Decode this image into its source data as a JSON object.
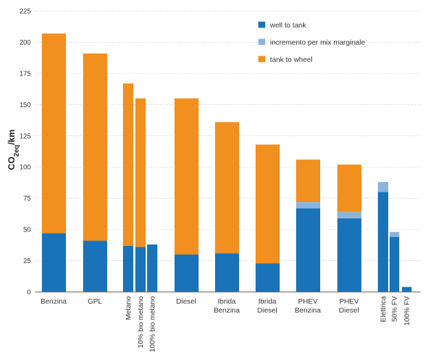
{
  "chart_data": {
    "type": "bar",
    "stacked": true,
    "ylabel": {
      "base": "CO",
      "subscript": "2eq",
      "suffix": "/km"
    },
    "ylim": [
      0,
      225
    ],
    "yticks": [
      0,
      25,
      50,
      75,
      100,
      125,
      150,
      175,
      200,
      225
    ],
    "grid": true,
    "legend_position": "top-right",
    "series": [
      {
        "name": "well to tank",
        "color": "#1a73b8"
      },
      {
        "name": "incremento per mix marginale",
        "color": "#8cb4dc"
      },
      {
        "name": "tank to wheel",
        "color": "#f18f1f"
      }
    ],
    "bars": [
      {
        "label": "Benzina",
        "values": [
          47,
          0,
          160
        ],
        "label_orientation": "horizontal"
      },
      {
        "label": "GPL",
        "values": [
          41,
          0,
          150
        ],
        "label_orientation": "horizontal"
      },
      {
        "label": "Metano",
        "values": [
          37,
          0,
          130
        ],
        "label_orientation": "vertical"
      },
      {
        "label": "10% bio metano",
        "values": [
          36,
          0,
          119
        ],
        "label_orientation": "vertical"
      },
      {
        "label": "100% bio metano",
        "values": [
          38,
          0,
          0
        ],
        "label_orientation": "vertical"
      },
      {
        "label": "Diesel",
        "values": [
          30,
          0,
          125
        ],
        "label_orientation": "horizontal"
      },
      {
        "label": "Ibrida Benzina",
        "values": [
          31,
          0,
          105
        ],
        "label_orientation": "horizontal"
      },
      {
        "label": "Ibrida Diesel",
        "values": [
          23,
          0,
          95
        ],
        "label_orientation": "horizontal"
      },
      {
        "label": "PHEV Benzina",
        "values": [
          67,
          5,
          34
        ],
        "label_orientation": "horizontal"
      },
      {
        "label": "PHEV Diesel",
        "values": [
          59,
          5,
          38
        ],
        "label_orientation": "horizontal"
      },
      {
        "label": "Elettrica",
        "values": [
          80,
          8,
          0
        ],
        "label_orientation": "vertical"
      },
      {
        "label": "50% FV",
        "values": [
          44,
          4,
          0
        ],
        "label_orientation": "vertical"
      },
      {
        "label": "100% FV",
        "values": [
          4,
          0,
          0
        ],
        "label_orientation": "vertical"
      }
    ]
  }
}
